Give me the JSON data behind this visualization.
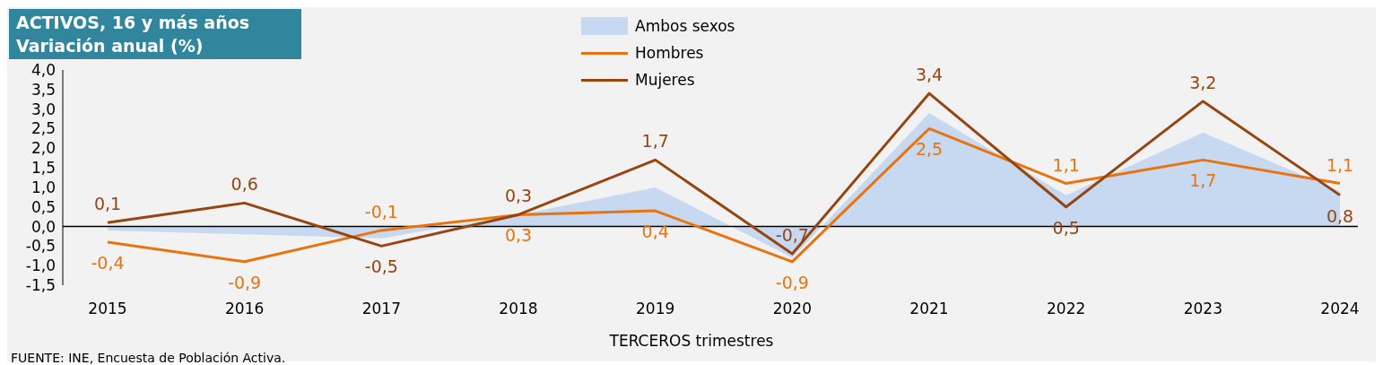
{
  "chart_data": {
    "type": "line",
    "title": "ACTIVOS, 16 y más años",
    "subtitle": "Variación anual (%)",
    "xlabel": "TERCEROS trimestres",
    "annotations": [
      "FUENTE: INE, Encuesta de Población Activa."
    ],
    "categories": [
      "2015",
      "2016",
      "2017",
      "2018",
      "2019",
      "2020",
      "2021",
      "2022",
      "2023",
      "2024"
    ],
    "series": [
      {
        "name": "Ambos sexos",
        "type": "area",
        "color": "#c6d9f0",
        "values": [
          -0.1,
          -0.2,
          -0.3,
          0.3,
          1.0,
          -0.8,
          2.9,
          0.8,
          2.4,
          0.9
        ]
      },
      {
        "name": "Hombres",
        "color": "#e8730f",
        "values": [
          -0.4,
          -0.9,
          -0.1,
          0.3,
          0.4,
          -0.9,
          2.5,
          1.1,
          1.7,
          1.1
        ],
        "value_labels": [
          "-0,4",
          "-0,9",
          "-0,1",
          "0,3",
          "0,4",
          "-0,9",
          "2,5",
          "1,1",
          "1,7",
          "1,1"
        ]
      },
      {
        "name": "Mujeres",
        "color": "#964511",
        "values": [
          0.1,
          0.6,
          -0.5,
          0.3,
          1.7,
          -0.7,
          3.4,
          0.5,
          3.2,
          0.8
        ],
        "value_labels": [
          "0,1",
          "0,6",
          "-0,5",
          "0,3",
          "1,7",
          "-0,7",
          "3,4",
          "0,5",
          "3,2",
          "0,8"
        ]
      }
    ],
    "ylim": [
      -1.5,
      4.0
    ],
    "yticks": [
      {
        "value": -1.5,
        "label": "-1,5"
      },
      {
        "value": -1.0,
        "label": "-1,0"
      },
      {
        "value": -0.5,
        "label": "-0,5"
      },
      {
        "value": 0,
        "label": "0,0"
      },
      {
        "value": 0.5,
        "label": "0,5"
      },
      {
        "value": 1.0,
        "label": "1,0"
      },
      {
        "value": 1.5,
        "label": "1,5"
      },
      {
        "value": 2.0,
        "label": "2,0"
      },
      {
        "value": 2.5,
        "label": "2,5"
      },
      {
        "value": 3.0,
        "label": "3,0"
      },
      {
        "value": 3.5,
        "label": "3,5"
      },
      {
        "value": 4.0,
        "label": "4,0"
      }
    ],
    "ref_lines": [
      {
        "axis": "y",
        "value": 0,
        "color": "#000000"
      }
    ],
    "legend": "top",
    "marker": "none",
    "line_style": "solid"
  }
}
